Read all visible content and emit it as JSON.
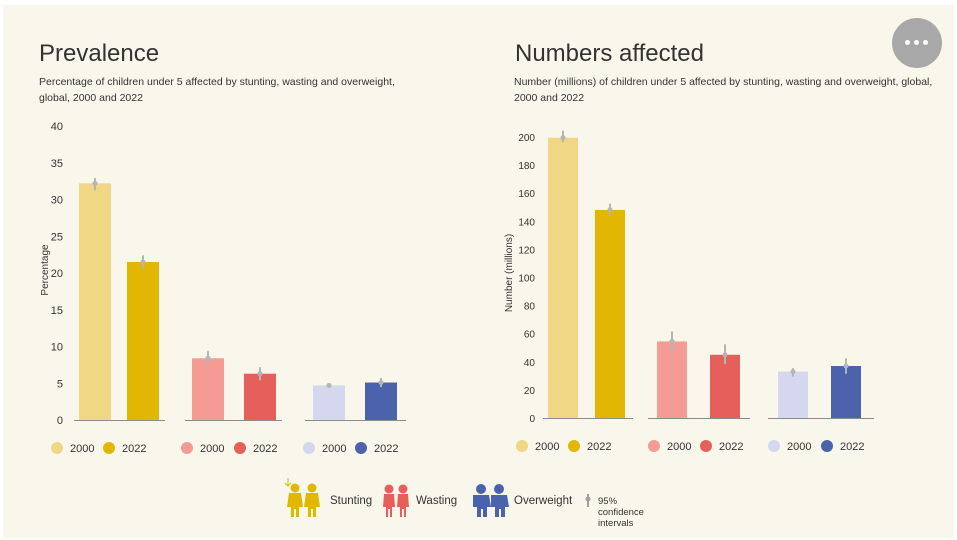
{
  "chart_data": [
    {
      "type": "bar",
      "title": "Prevalence",
      "subtitle": "Percentage of children under 5 affected by stunting, wasting and overweight, global, 2000 and 2022",
      "xlabel": "",
      "ylabel": "Percentage",
      "ylim": [
        0,
        40
      ],
      "yticks": [
        0,
        5,
        10,
        15,
        20,
        25,
        30,
        35,
        40
      ],
      "groups": [
        "Stunting",
        "Wasting",
        "Overweight"
      ],
      "years": [
        "2000",
        "2022"
      ],
      "values": [
        [
          32.2,
          21.5
        ],
        [
          8.4,
          6.3
        ],
        [
          4.7,
          5.1
        ]
      ],
      "ci": [
        [
          [
            31.4,
            32.8
          ],
          [
            20.7,
            22.3
          ]
        ],
        [
          [
            7.7,
            9.3
          ],
          [
            5.5,
            7.1
          ]
        ],
        [
          [
            4.5,
            4.9
          ],
          [
            4.6,
            5.6
          ]
        ]
      ],
      "colors": [
        [
          "#efd785",
          "#e2b704"
        ],
        [
          "#f49b94",
          "#e5605b"
        ],
        [
          "#d4d7ee",
          "#4b62ad"
        ]
      ],
      "grid": false
    },
    {
      "type": "bar",
      "title": "Numbers affected",
      "subtitle": "Number (millions) of children under 5 affected by stunting, wasting and overweight, global, 2000 and 2022",
      "xlabel": "",
      "ylabel": "Number (millions)",
      "ylim": [
        0,
        200
      ],
      "yticks": [
        0,
        20,
        40,
        60,
        80,
        100,
        120,
        140,
        160,
        180,
        200
      ],
      "groups": [
        "Stunting",
        "Wasting",
        "Overweight"
      ],
      "years": [
        "2000",
        "2022"
      ],
      "values": [
        [
          199.5,
          148.1
        ],
        [
          54.5,
          45
        ],
        [
          33,
          37
        ]
      ],
      "ci": [
        [
          [
            197,
            204
          ],
          [
            145,
            152
          ]
        ],
        [
          [
            47,
            61
          ],
          [
            39,
            52
          ]
        ],
        [
          [
            30,
            35
          ],
          [
            32,
            42
          ]
        ]
      ],
      "colors": [
        [
          "#efd785",
          "#e2b704"
        ],
        [
          "#f49b94",
          "#e5605b"
        ],
        [
          "#d4d7ee",
          "#4b62ad"
        ]
      ],
      "grid": false
    }
  ],
  "legend": {
    "indicators": [
      {
        "label": "Stunting",
        "icon": "children-stunting-icon",
        "color": "#e2b704"
      },
      {
        "label": "Wasting",
        "icon": "children-wasting-icon",
        "color": "#e5605b"
      },
      {
        "label": "Overweight",
        "icon": "children-overweight-icon",
        "color": "#4b62ad"
      }
    ],
    "ci_label": "95% confidence intervals",
    "ci_icon": "confidence-interval-icon"
  },
  "menu_icon": "more-options-icon"
}
